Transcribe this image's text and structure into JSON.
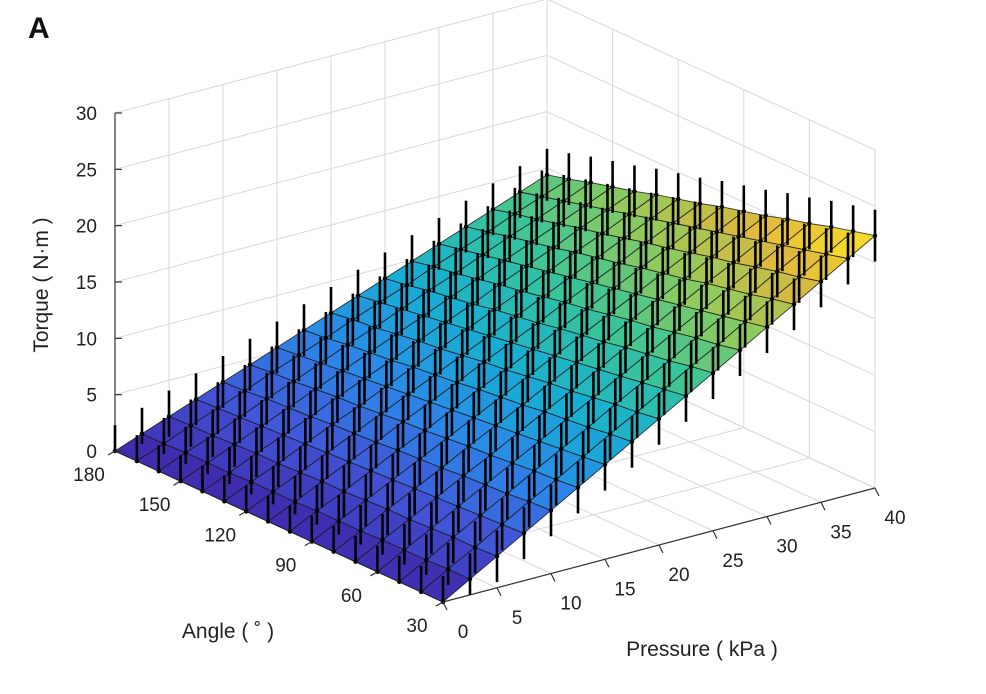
{
  "panel_label": "A",
  "chart_data": {
    "type": "surface",
    "xlabel": "Pressure ( kPa )",
    "ylabel": "Angle ( ˚ )",
    "zlabel": "Torque ( N·m )",
    "xlim": [
      0,
      40
    ],
    "ylim": [
      30,
      180
    ],
    "zlim": [
      0,
      30
    ],
    "x_ticks": [
      "0",
      "5",
      "10",
      "15",
      "20",
      "25",
      "30",
      "35",
      "40"
    ],
    "y_ticks": [
      "30",
      "60",
      "90",
      "120",
      "150",
      "180"
    ],
    "z_ticks": [
      "0",
      "5",
      "10",
      "15",
      "20",
      "25",
      "30"
    ],
    "pressure_kpa": [
      0,
      2.5,
      5,
      7.5,
      10,
      12.5,
      15,
      17.5,
      20,
      22.5,
      25,
      27.5,
      30,
      32.5,
      35,
      37.5,
      40
    ],
    "angle_deg": [
      30,
      40,
      50,
      60,
      70,
      80,
      90,
      100,
      110,
      120,
      130,
      140,
      150,
      160,
      170,
      180
    ],
    "torque_model": "Torque rises roughly linearly with pressure (about 0.55 N·m per kPa at 40 kPa) and increases toward small bending angles; peak ≈ 22 N·m at 40 kPa, 30°; error bars ≈ ±2.3 N·m",
    "torque_rows_by_angle": [
      [
        0,
        1.4,
        2.8,
        4.2,
        5.6,
        7.0,
        8.4,
        9.8,
        11.2,
        12.6,
        14.0,
        15.4,
        16.8,
        18.2,
        19.6,
        21.0,
        22.4
      ],
      [
        0,
        1.4,
        2.7,
        4.1,
        5.5,
        6.8,
        8.2,
        9.6,
        10.9,
        12.3,
        13.7,
        15.0,
        16.4,
        17.8,
        19.1,
        20.5,
        21.9
      ],
      [
        0,
        1.3,
        2.7,
        4.0,
        5.3,
        6.7,
        8.0,
        9.3,
        10.7,
        12.0,
        13.3,
        14.7,
        16.0,
        17.3,
        18.7,
        20.0,
        21.4
      ],
      [
        0,
        1.3,
        2.6,
        3.9,
        5.2,
        6.5,
        7.8,
        9.1,
        10.4,
        11.7,
        13.0,
        14.3,
        15.6,
        16.9,
        18.2,
        19.5,
        20.8
      ],
      [
        0,
        1.3,
        2.5,
        3.8,
        5.1,
        6.3,
        7.6,
        8.9,
        10.1,
        11.4,
        12.7,
        13.9,
        15.2,
        16.5,
        17.7,
        19.0,
        20.3
      ],
      [
        0,
        1.2,
        2.5,
        3.7,
        4.9,
        6.2,
        7.4,
        8.6,
        9.9,
        11.1,
        12.3,
        13.6,
        14.8,
        16.0,
        17.3,
        18.5,
        19.7
      ],
      [
        0,
        1.2,
        2.4,
        3.6,
        4.8,
        6.0,
        7.2,
        8.4,
        9.6,
        10.8,
        12.0,
        13.2,
        14.4,
        15.6,
        16.8,
        18.0,
        19.2
      ],
      [
        0,
        1.2,
        2.3,
        3.5,
        4.7,
        5.8,
        7.0,
        8.2,
        9.3,
        10.5,
        11.7,
        12.8,
        14.0,
        15.2,
        16.3,
        17.5,
        18.7
      ],
      [
        0,
        1.1,
        2.3,
        3.4,
        4.5,
        5.7,
        6.8,
        7.9,
        9.1,
        10.2,
        11.3,
        12.5,
        13.6,
        14.7,
        15.9,
        17.0,
        18.1
      ],
      [
        0,
        1.1,
        2.2,
        3.3,
        4.4,
        5.5,
        6.6,
        7.7,
        8.8,
        9.9,
        11.0,
        12.1,
        13.2,
        14.3,
        15.4,
        16.5,
        17.6
      ],
      [
        0,
        1.1,
        2.1,
        3.2,
        4.3,
        5.3,
        6.4,
        7.5,
        8.5,
        9.6,
        10.7,
        11.7,
        12.8,
        13.9,
        14.9,
        16.0,
        17.1
      ],
      [
        0,
        1.0,
        2.1,
        3.1,
        4.1,
        5.2,
        6.2,
        7.2,
        8.3,
        9.3,
        10.3,
        11.4,
        12.4,
        13.4,
        14.5,
        15.5,
        16.5
      ],
      [
        0,
        1.0,
        2.0,
        3.0,
        4.0,
        5.0,
        6.0,
        7.0,
        8.0,
        9.0,
        10.0,
        11.0,
        12.0,
        13.0,
        14.0,
        15.0,
        16.0
      ],
      [
        0,
        1.0,
        1.9,
        2.9,
        3.9,
        4.8,
        5.8,
        6.8,
        7.7,
        8.7,
        9.7,
        10.6,
        11.6,
        12.6,
        13.5,
        14.5,
        15.5
      ],
      [
        0,
        0.9,
        1.9,
        2.8,
        3.7,
        4.7,
        5.6,
        6.5,
        7.5,
        8.4,
        9.3,
        10.3,
        11.2,
        12.1,
        13.1,
        14.0,
        14.9
      ],
      [
        0,
        0.9,
        1.8,
        2.7,
        3.6,
        4.5,
        5.4,
        6.3,
        7.2,
        8.1,
        9.0,
        9.9,
        10.8,
        11.7,
        12.6,
        13.5,
        14.4
      ]
    ],
    "error_bar_halfwidth": 2.3,
    "colormap": [
      "#3e26a8",
      "#4253d6",
      "#2c86e8",
      "#17aed3",
      "#37c49a",
      "#8fcb5c",
      "#e1b73e",
      "#fde725"
    ],
    "grid": true
  }
}
